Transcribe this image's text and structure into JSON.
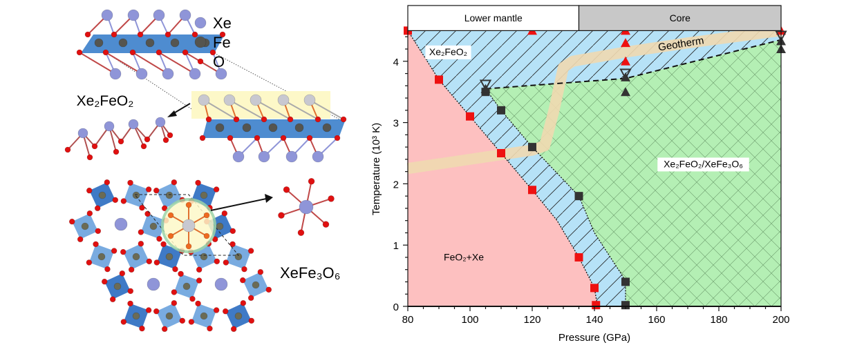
{
  "structures": {
    "legend": [
      {
        "label": "Xe",
        "color": "#8f95d8"
      },
      {
        "label": "Fe",
        "color": "#555550"
      },
      {
        "label": "O",
        "color": "#e01010"
      }
    ],
    "layered_label": "Xe₂FeO₂",
    "framework_label": "XeFe₃O₆",
    "colors": {
      "octa_light": "#6aa2dd",
      "octa_dark": "#2a6cc0",
      "slab": "#2f78c8",
      "highlight": "#fdf8c8"
    }
  },
  "chart_data": {
    "type": "scatter",
    "title": "",
    "xlabel": "Pressure (GPa)",
    "ylabel": "Temperature (10³ K)",
    "xlim": [
      80,
      200
    ],
    "ylim": [
      0,
      4.5
    ],
    "xticks": [
      80,
      100,
      120,
      140,
      160,
      180,
      200
    ],
    "yticks": [
      0,
      1,
      2,
      3,
      4
    ],
    "grid": false,
    "zones": [
      {
        "label": "Lower  mantle",
        "from": 80,
        "to": 135,
        "color": "#ffffff"
      },
      {
        "label": "Core",
        "from": 135,
        "to": 200,
        "color": "#c8c8c8"
      }
    ],
    "regions": [
      {
        "label": "FeO₂+Xe",
        "color": "#fdc0c0",
        "hatch": "none",
        "label_at": [
          98,
          0.75
        ],
        "polygon": [
          [
            80,
            4.5
          ],
          [
            90,
            3.7
          ],
          [
            100,
            3.1
          ],
          [
            110,
            2.5
          ],
          [
            120,
            1.9
          ],
          [
            128,
            1.4
          ],
          [
            135,
            0.8
          ],
          [
            140,
            0.3
          ],
          [
            141,
            0
          ],
          [
            80,
            0
          ]
        ]
      },
      {
        "label": "Xe₂FeO₂",
        "color": "#b6e2f7",
        "hatch": "diagonal",
        "label_at": [
          93,
          4.1
        ],
        "polygon": [
          [
            80,
            4.5
          ],
          [
            200,
            4.5
          ],
          [
            200,
            4.35
          ],
          [
            150,
            3.72
          ],
          [
            105,
            3.55
          ],
          [
            110,
            3.2
          ],
          [
            120,
            2.6
          ],
          [
            135,
            1.8
          ],
          [
            140,
            1.2
          ],
          [
            149,
            0.5
          ],
          [
            150,
            0.4
          ],
          [
            150,
            0
          ],
          [
            141,
            0
          ],
          [
            140,
            0.3
          ],
          [
            135,
            0.8
          ],
          [
            128,
            1.4
          ],
          [
            120,
            1.9
          ],
          [
            110,
            2.5
          ],
          [
            100,
            3.1
          ],
          [
            90,
            3.7
          ]
        ]
      },
      {
        "label": "Xe₂FeO₂/XeFe₃O₆",
        "color": "#b4efb4",
        "hatch": "cross",
        "label_at": [
          175,
          2.27
        ],
        "polygon": [
          [
            105,
            3.55
          ],
          [
            150,
            3.72
          ],
          [
            200,
            4.35
          ],
          [
            200,
            0
          ],
          [
            150,
            0
          ],
          [
            150,
            0.4
          ],
          [
            149,
            0.5
          ],
          [
            140,
            1.2
          ],
          [
            135,
            1.8
          ],
          [
            120,
            2.6
          ],
          [
            110,
            3.2
          ]
        ]
      }
    ],
    "boundaries": [
      {
        "style": "dotted",
        "points": [
          [
            80,
            4.5
          ],
          [
            90,
            3.7
          ],
          [
            100,
            3.1
          ],
          [
            110,
            2.5
          ],
          [
            120,
            1.9
          ],
          [
            128,
            1.4
          ],
          [
            135,
            0.8
          ],
          [
            140,
            0.3
          ],
          [
            141,
            0
          ]
        ]
      },
      {
        "style": "dotted",
        "points": [
          [
            105,
            3.55
          ],
          [
            110,
            3.2
          ],
          [
            120,
            2.6
          ],
          [
            135,
            1.8
          ],
          [
            140,
            1.2
          ],
          [
            149,
            0.5
          ],
          [
            150,
            0.4
          ],
          [
            150,
            0
          ]
        ]
      },
      {
        "style": "dashed",
        "points": [
          [
            105,
            3.55
          ],
          [
            150,
            3.72
          ],
          [
            200,
            4.35
          ]
        ]
      }
    ],
    "geotherm": {
      "label": "Geotherm",
      "color": "#f0d9b0",
      "label_at": [
        168,
        4.23
      ],
      "points": [
        [
          80,
          2.25
        ],
        [
          100,
          2.4
        ],
        [
          120,
          2.55
        ],
        [
          124,
          2.62
        ],
        [
          127,
          3.2
        ],
        [
          130,
          3.9
        ],
        [
          133,
          4.0
        ],
        [
          150,
          4.15
        ],
        [
          170,
          4.3
        ],
        [
          200,
          4.5
        ]
      ]
    },
    "series": [
      {
        "marker": "square",
        "color": "#ee1111",
        "points": [
          [
            80,
            4.5
          ],
          [
            90,
            3.7
          ],
          [
            100,
            3.1
          ],
          [
            110,
            2.5
          ],
          [
            120,
            1.9
          ],
          [
            135,
            0.8
          ],
          [
            140,
            0.3
          ],
          [
            140.5,
            0.02
          ]
        ]
      },
      {
        "marker": "square",
        "color": "#333333",
        "points": [
          [
            105,
            3.5
          ],
          [
            110,
            3.2
          ],
          [
            120,
            2.6
          ],
          [
            135,
            1.8
          ],
          [
            150,
            0.4
          ],
          [
            150,
            0.02
          ]
        ]
      },
      {
        "marker": "triangle-up",
        "color": "#ee1111",
        "points": [
          [
            120,
            4.5
          ],
          [
            150,
            4.5
          ],
          [
            150,
            4.3
          ],
          [
            150,
            4.0
          ],
          [
            200,
            4.5
          ]
        ]
      },
      {
        "marker": "triangle-up",
        "color": "#333333",
        "points": [
          [
            105,
            3.55
          ],
          [
            150,
            3.74
          ],
          [
            150,
            3.5
          ],
          [
            200,
            4.33
          ],
          [
            200,
            4.2
          ]
        ]
      },
      {
        "marker": "triangle-down-open",
        "color": "#333333",
        "points": [
          [
            105,
            3.62
          ],
          [
            150,
            3.8
          ],
          [
            200,
            4.42
          ]
        ]
      }
    ]
  }
}
